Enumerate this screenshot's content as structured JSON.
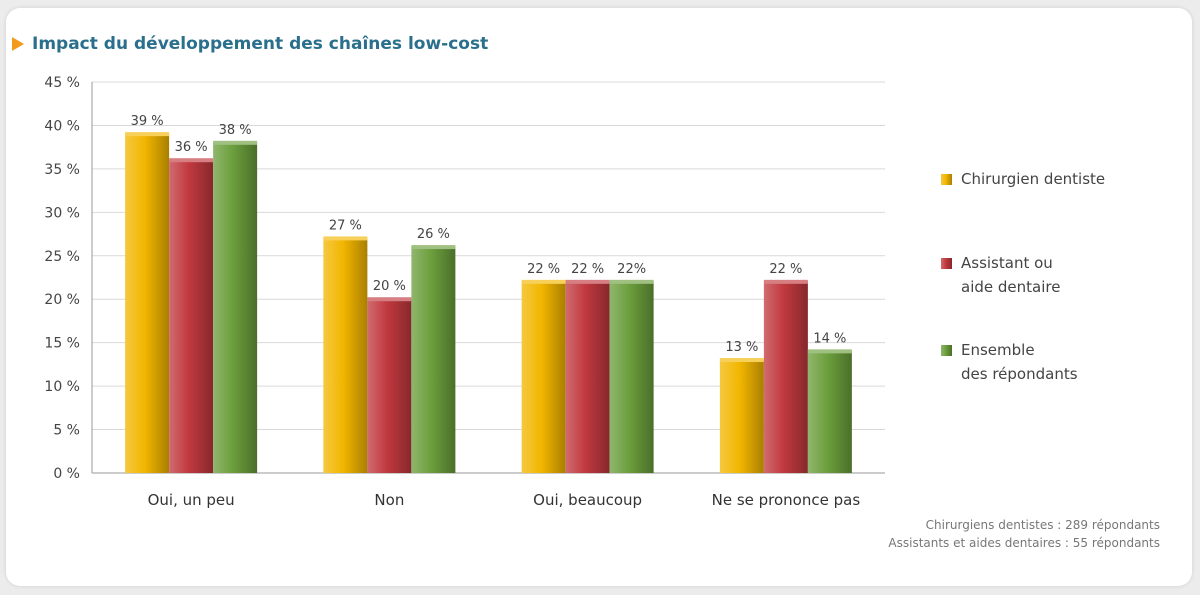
{
  "chart_data": {
    "type": "bar",
    "title": "Impact du développement des chaînes low-cost",
    "categories": [
      "Oui, un peu",
      "Non",
      "Oui, beaucoup",
      "Ne se prononce pas"
    ],
    "series": [
      {
        "name": "Chirurgien dentiste",
        "values": [
          39,
          27,
          22,
          13
        ],
        "labels": [
          "39 %",
          "27 %",
          "22 %",
          "13 %"
        ],
        "color": "#f2b600"
      },
      {
        "name": "Assistant ou aide dentaire",
        "values": [
          36,
          20,
          22,
          22
        ],
        "labels": [
          "36 %",
          "20 %",
          "22 %",
          "22 %"
        ],
        "color": "#c0393f"
      },
      {
        "name": "Ensemble des répondants",
        "values": [
          38,
          26,
          22,
          14
        ],
        "labels": [
          "38 %",
          "26 %",
          "22%",
          "14 %"
        ],
        "color": "#6b9e3c"
      }
    ],
    "ylim": [
      0,
      45
    ],
    "yticks": [
      "0 %",
      "5 %",
      "10 %",
      "15 %",
      "20 %",
      "25 %",
      "30 %",
      "35 %",
      "40 %",
      "45 %"
    ],
    "legend_position": "right",
    "grid": true
  },
  "notes": [
    "Chirurgiens dentistes : 289 répondants",
    "Assistants et aides dentaires : 55 répondants"
  ]
}
